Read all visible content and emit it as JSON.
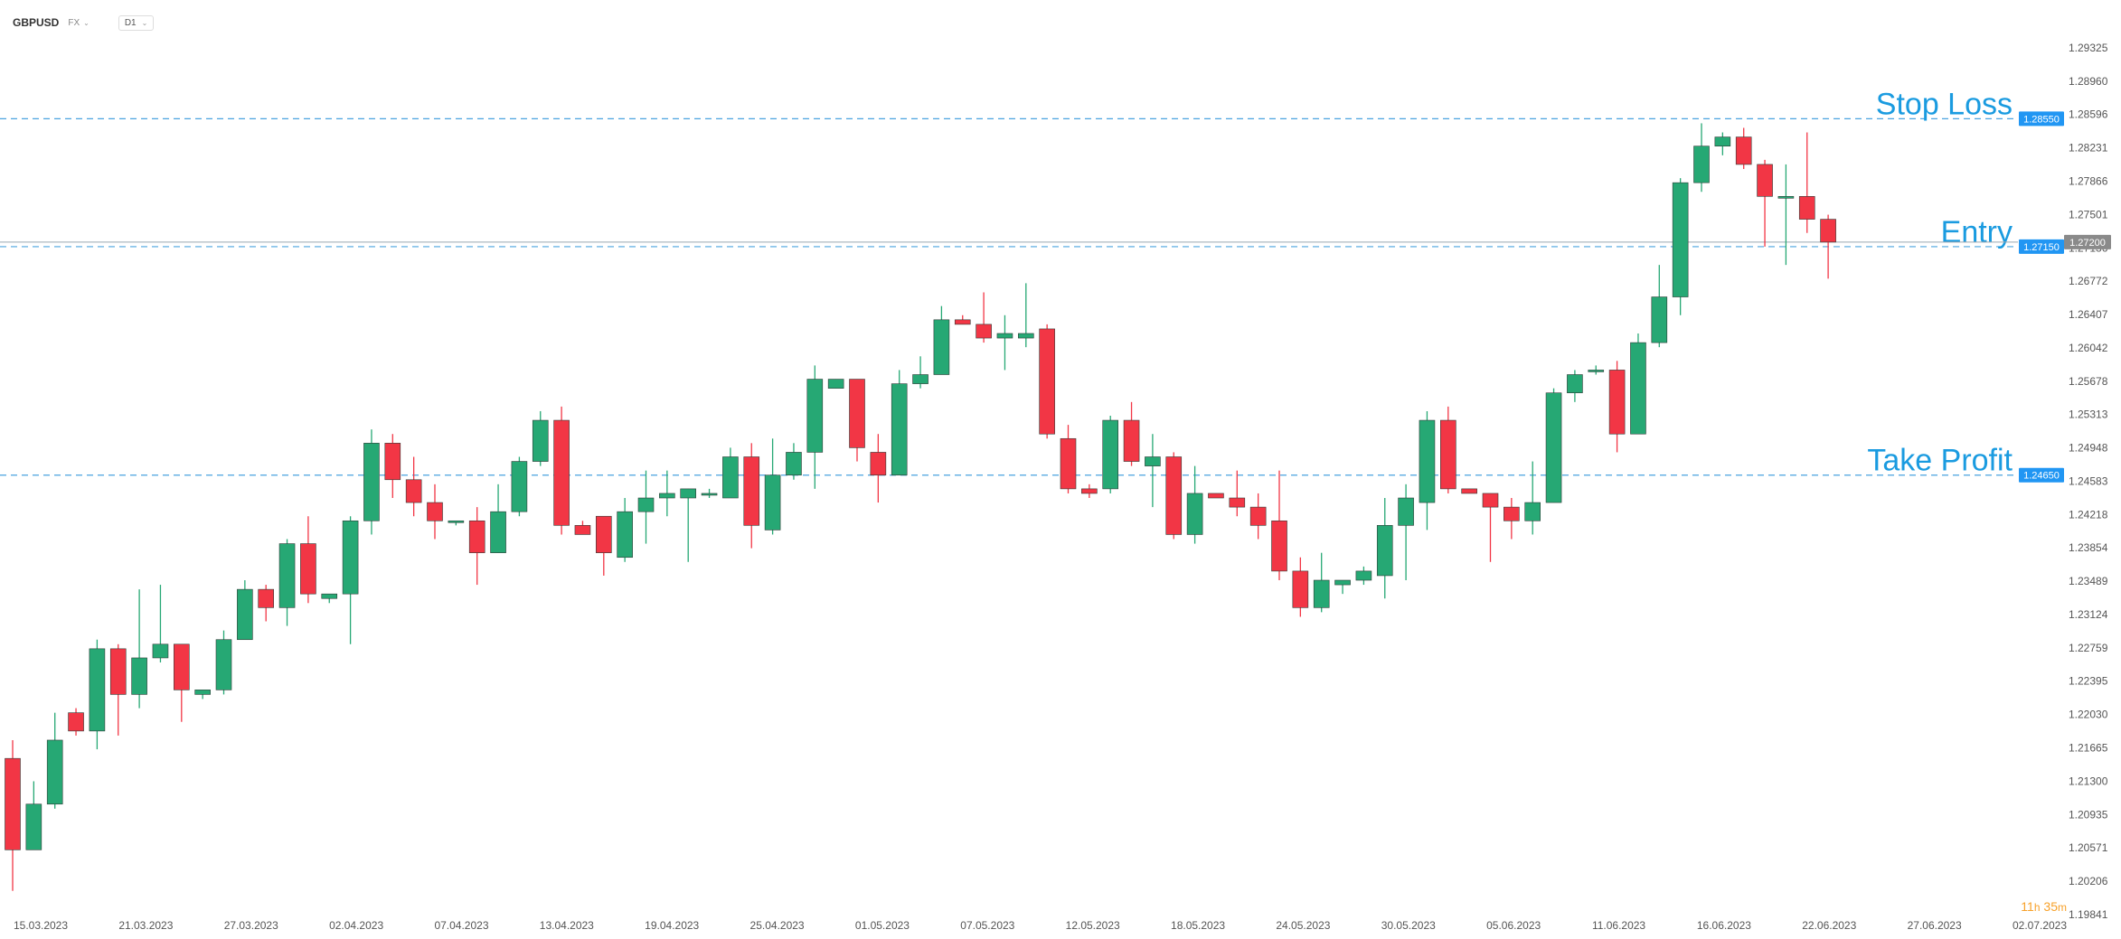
{
  "toolbar": {
    "symbol": "GBPUSD",
    "market": "FX",
    "timeframe": "D1"
  },
  "countdown": {
    "hours": "11",
    "hours_unit": "h",
    "minutes": "35",
    "minutes_unit": "m"
  },
  "colors": {
    "bull": "#26a874",
    "bear": "#f23645",
    "level_line": "#4aa3df",
    "level_label": "#1a9be0",
    "badge": "#2196f3",
    "current_badge": "#8a8a8a",
    "grid_text": "#555555"
  },
  "chart_data": {
    "type": "candlestick",
    "symbol": "GBPUSD",
    "timeframe": "D1",
    "ylim": [
      1.19841,
      1.29325
    ],
    "y_ticks": [
      "1.29325",
      "1.28960",
      "1.28596",
      "1.28231",
      "1.27866",
      "1.27501",
      "1.27136",
      "1.26772",
      "1.26407",
      "1.26042",
      "1.25678",
      "1.25313",
      "1.24948",
      "1.24583",
      "1.24218",
      "1.23854",
      "1.23489",
      "1.23124",
      "1.22759",
      "1.22395",
      "1.22030",
      "1.21665",
      "1.21300",
      "1.20935",
      "1.20571",
      "1.20206",
      "1.19841"
    ],
    "x_ticks": [
      "15.03.2023",
      "21.03.2023",
      "27.03.2023",
      "02.04.2023",
      "07.04.2023",
      "13.04.2023",
      "19.04.2023",
      "25.04.2023",
      "01.05.2023",
      "07.05.2023",
      "12.05.2023",
      "18.05.2023",
      "24.05.2023",
      "30.05.2023",
      "05.06.2023",
      "11.06.2023",
      "16.06.2023",
      "22.06.2023",
      "27.06.2023",
      "02.07.2023"
    ],
    "levels": [
      {
        "name": "Stop Loss",
        "price": 1.2855,
        "badge": "1.28550"
      },
      {
        "name": "Entry",
        "price": 1.2715,
        "badge": "1.27150"
      },
      {
        "name": "Take Profit",
        "price": 1.2465,
        "badge": "1.24650"
      }
    ],
    "current_price": {
      "price": 1.272,
      "badge": "1.27200"
    },
    "candles": [
      {
        "o": 1.2155,
        "h": 1.2175,
        "l": 1.201,
        "c": 1.2055
      },
      {
        "o": 1.2055,
        "h": 1.213,
        "l": 1.2055,
        "c": 1.2105
      },
      {
        "o": 1.2105,
        "h": 1.2205,
        "l": 1.21,
        "c": 1.2175
      },
      {
        "o": 1.2205,
        "h": 1.221,
        "l": 1.218,
        "c": 1.2185
      },
      {
        "o": 1.2185,
        "h": 1.2285,
        "l": 1.2165,
        "c": 1.2275
      },
      {
        "o": 1.2275,
        "h": 1.228,
        "l": 1.218,
        "c": 1.2225
      },
      {
        "o": 1.2225,
        "h": 1.234,
        "l": 1.221,
        "c": 1.2265
      },
      {
        "o": 1.2265,
        "h": 1.2345,
        "l": 1.226,
        "c": 1.228
      },
      {
        "o": 1.228,
        "h": 1.228,
        "l": 1.2195,
        "c": 1.223
      },
      {
        "o": 1.2225,
        "h": 1.223,
        "l": 1.222,
        "c": 1.223
      },
      {
        "o": 1.223,
        "h": 1.2295,
        "l": 1.2225,
        "c": 1.2285
      },
      {
        "o": 1.2285,
        "h": 1.235,
        "l": 1.2285,
        "c": 1.234
      },
      {
        "o": 1.234,
        "h": 1.2345,
        "l": 1.2305,
        "c": 1.232
      },
      {
        "o": 1.232,
        "h": 1.2395,
        "l": 1.23,
        "c": 1.239
      },
      {
        "o": 1.239,
        "h": 1.242,
        "l": 1.2325,
        "c": 1.2335
      },
      {
        "o": 1.233,
        "h": 1.2335,
        "l": 1.2325,
        "c": 1.2335
      },
      {
        "o": 1.2335,
        "h": 1.242,
        "l": 1.228,
        "c": 1.2415
      },
      {
        "o": 1.2415,
        "h": 1.2515,
        "l": 1.24,
        "c": 1.25
      },
      {
        "o": 1.25,
        "h": 1.251,
        "l": 1.244,
        "c": 1.246
      },
      {
        "o": 1.246,
        "h": 1.2485,
        "l": 1.242,
        "c": 1.2435
      },
      {
        "o": 1.2435,
        "h": 1.2455,
        "l": 1.2395,
        "c": 1.2415
      },
      {
        "o": 1.2415,
        "h": 1.2415,
        "l": 1.241,
        "c": 1.2415
      },
      {
        "o": 1.2415,
        "h": 1.243,
        "l": 1.2345,
        "c": 1.238
      },
      {
        "o": 1.238,
        "h": 1.2455,
        "l": 1.238,
        "c": 1.2425
      },
      {
        "o": 1.2425,
        "h": 1.2485,
        "l": 1.242,
        "c": 1.248
      },
      {
        "o": 1.248,
        "h": 1.2535,
        "l": 1.2475,
        "c": 1.2525
      },
      {
        "o": 1.2525,
        "h": 1.254,
        "l": 1.24,
        "c": 1.241
      },
      {
        "o": 1.241,
        "h": 1.2415,
        "l": 1.24,
        "c": 1.24
      },
      {
        "o": 1.242,
        "h": 1.242,
        "l": 1.2355,
        "c": 1.238
      },
      {
        "o": 1.2375,
        "h": 1.244,
        "l": 1.237,
        "c": 1.2425
      },
      {
        "o": 1.2425,
        "h": 1.247,
        "l": 1.239,
        "c": 1.244
      },
      {
        "o": 1.244,
        "h": 1.247,
        "l": 1.242,
        "c": 1.2445
      },
      {
        "o": 1.244,
        "h": 1.245,
        "l": 1.237,
        "c": 1.245
      },
      {
        "o": 1.2445,
        "h": 1.245,
        "l": 1.244,
        "c": 1.2445
      },
      {
        "o": 1.244,
        "h": 1.2495,
        "l": 1.244,
        "c": 1.2485
      },
      {
        "o": 1.2485,
        "h": 1.25,
        "l": 1.2385,
        "c": 1.241
      },
      {
        "o": 1.2405,
        "h": 1.2505,
        "l": 1.24,
        "c": 1.2465
      },
      {
        "o": 1.2465,
        "h": 1.25,
        "l": 1.246,
        "c": 1.249
      },
      {
        "o": 1.249,
        "h": 1.2585,
        "l": 1.245,
        "c": 1.257
      },
      {
        "o": 1.256,
        "h": 1.257,
        "l": 1.256,
        "c": 1.257
      },
      {
        "o": 1.257,
        "h": 1.257,
        "l": 1.248,
        "c": 1.2495
      },
      {
        "o": 1.249,
        "h": 1.251,
        "l": 1.2435,
        "c": 1.2465
      },
      {
        "o": 1.2465,
        "h": 1.258,
        "l": 1.2465,
        "c": 1.2565
      },
      {
        "o": 1.2565,
        "h": 1.2595,
        "l": 1.256,
        "c": 1.2575
      },
      {
        "o": 1.2575,
        "h": 1.265,
        "l": 1.2575,
        "c": 1.2635
      },
      {
        "o": 1.2635,
        "h": 1.264,
        "l": 1.263,
        "c": 1.263
      },
      {
        "o": 1.263,
        "h": 1.2665,
        "l": 1.261,
        "c": 1.2615
      },
      {
        "o": 1.2615,
        "h": 1.264,
        "l": 1.258,
        "c": 1.262
      },
      {
        "o": 1.2615,
        "h": 1.2675,
        "l": 1.2605,
        "c": 1.262
      },
      {
        "o": 1.2625,
        "h": 1.263,
        "l": 1.2505,
        "c": 1.251
      },
      {
        "o": 1.2505,
        "h": 1.252,
        "l": 1.2445,
        "c": 1.245
      },
      {
        "o": 1.245,
        "h": 1.2455,
        "l": 1.244,
        "c": 1.2445
      },
      {
        "o": 1.245,
        "h": 1.253,
        "l": 1.2445,
        "c": 1.2525
      },
      {
        "o": 1.2525,
        "h": 1.2545,
        "l": 1.2475,
        "c": 1.248
      },
      {
        "o": 1.2475,
        "h": 1.251,
        "l": 1.243,
        "c": 1.2485
      },
      {
        "o": 1.2485,
        "h": 1.249,
        "l": 1.2395,
        "c": 1.24
      },
      {
        "o": 1.24,
        "h": 1.2475,
        "l": 1.239,
        "c": 1.2445
      },
      {
        "o": 1.2445,
        "h": 1.2445,
        "l": 1.244,
        "c": 1.244
      },
      {
        "o": 1.244,
        "h": 1.247,
        "l": 1.242,
        "c": 1.243
      },
      {
        "o": 1.243,
        "h": 1.2445,
        "l": 1.2395,
        "c": 1.241
      },
      {
        "o": 1.2415,
        "h": 1.247,
        "l": 1.235,
        "c": 1.236
      },
      {
        "o": 1.236,
        "h": 1.2375,
        "l": 1.231,
        "c": 1.232
      },
      {
        "o": 1.232,
        "h": 1.238,
        "l": 1.2315,
        "c": 1.235
      },
      {
        "o": 1.2345,
        "h": 1.235,
        "l": 1.2335,
        "c": 1.235
      },
      {
        "o": 1.235,
        "h": 1.2365,
        "l": 1.2345,
        "c": 1.236
      },
      {
        "o": 1.2355,
        "h": 1.244,
        "l": 1.233,
        "c": 1.241
      },
      {
        "o": 1.241,
        "h": 1.2455,
        "l": 1.235,
        "c": 1.244
      },
      {
        "o": 1.2435,
        "h": 1.2535,
        "l": 1.2405,
        "c": 1.2525
      },
      {
        "o": 1.2525,
        "h": 1.254,
        "l": 1.2445,
        "c": 1.245
      },
      {
        "o": 1.245,
        "h": 1.245,
        "l": 1.2445,
        "c": 1.2445
      },
      {
        "o": 1.2445,
        "h": 1.2445,
        "l": 1.237,
        "c": 1.243
      },
      {
        "o": 1.243,
        "h": 1.244,
        "l": 1.2395,
        "c": 1.2415
      },
      {
        "o": 1.2415,
        "h": 1.248,
        "l": 1.24,
        "c": 1.2435
      },
      {
        "o": 1.2435,
        "h": 1.256,
        "l": 1.2435,
        "c": 1.2555
      },
      {
        "o": 1.2555,
        "h": 1.258,
        "l": 1.2545,
        "c": 1.2575
      },
      {
        "o": 1.258,
        "h": 1.2585,
        "l": 1.2575,
        "c": 1.258
      },
      {
        "o": 1.258,
        "h": 1.259,
        "l": 1.249,
        "c": 1.251
      },
      {
        "o": 1.251,
        "h": 1.262,
        "l": 1.251,
        "c": 1.261
      },
      {
        "o": 1.261,
        "h": 1.2695,
        "l": 1.2605,
        "c": 1.266
      },
      {
        "o": 1.266,
        "h": 1.279,
        "l": 1.264,
        "c": 1.2785
      },
      {
        "o": 1.2785,
        "h": 1.285,
        "l": 1.2775,
        "c": 1.2825
      },
      {
        "o": 1.2825,
        "h": 1.284,
        "l": 1.2815,
        "c": 1.2835
      },
      {
        "o": 1.2835,
        "h": 1.2845,
        "l": 1.28,
        "c": 1.2805
      },
      {
        "o": 1.2805,
        "h": 1.281,
        "l": 1.2715,
        "c": 1.277
      },
      {
        "o": 1.277,
        "h": 1.2805,
        "l": 1.2695,
        "c": 1.277
      },
      {
        "o": 1.277,
        "h": 1.284,
        "l": 1.273,
        "c": 1.2745
      },
      {
        "o": 1.2745,
        "h": 1.275,
        "l": 1.268,
        "c": 1.272
      }
    ]
  }
}
